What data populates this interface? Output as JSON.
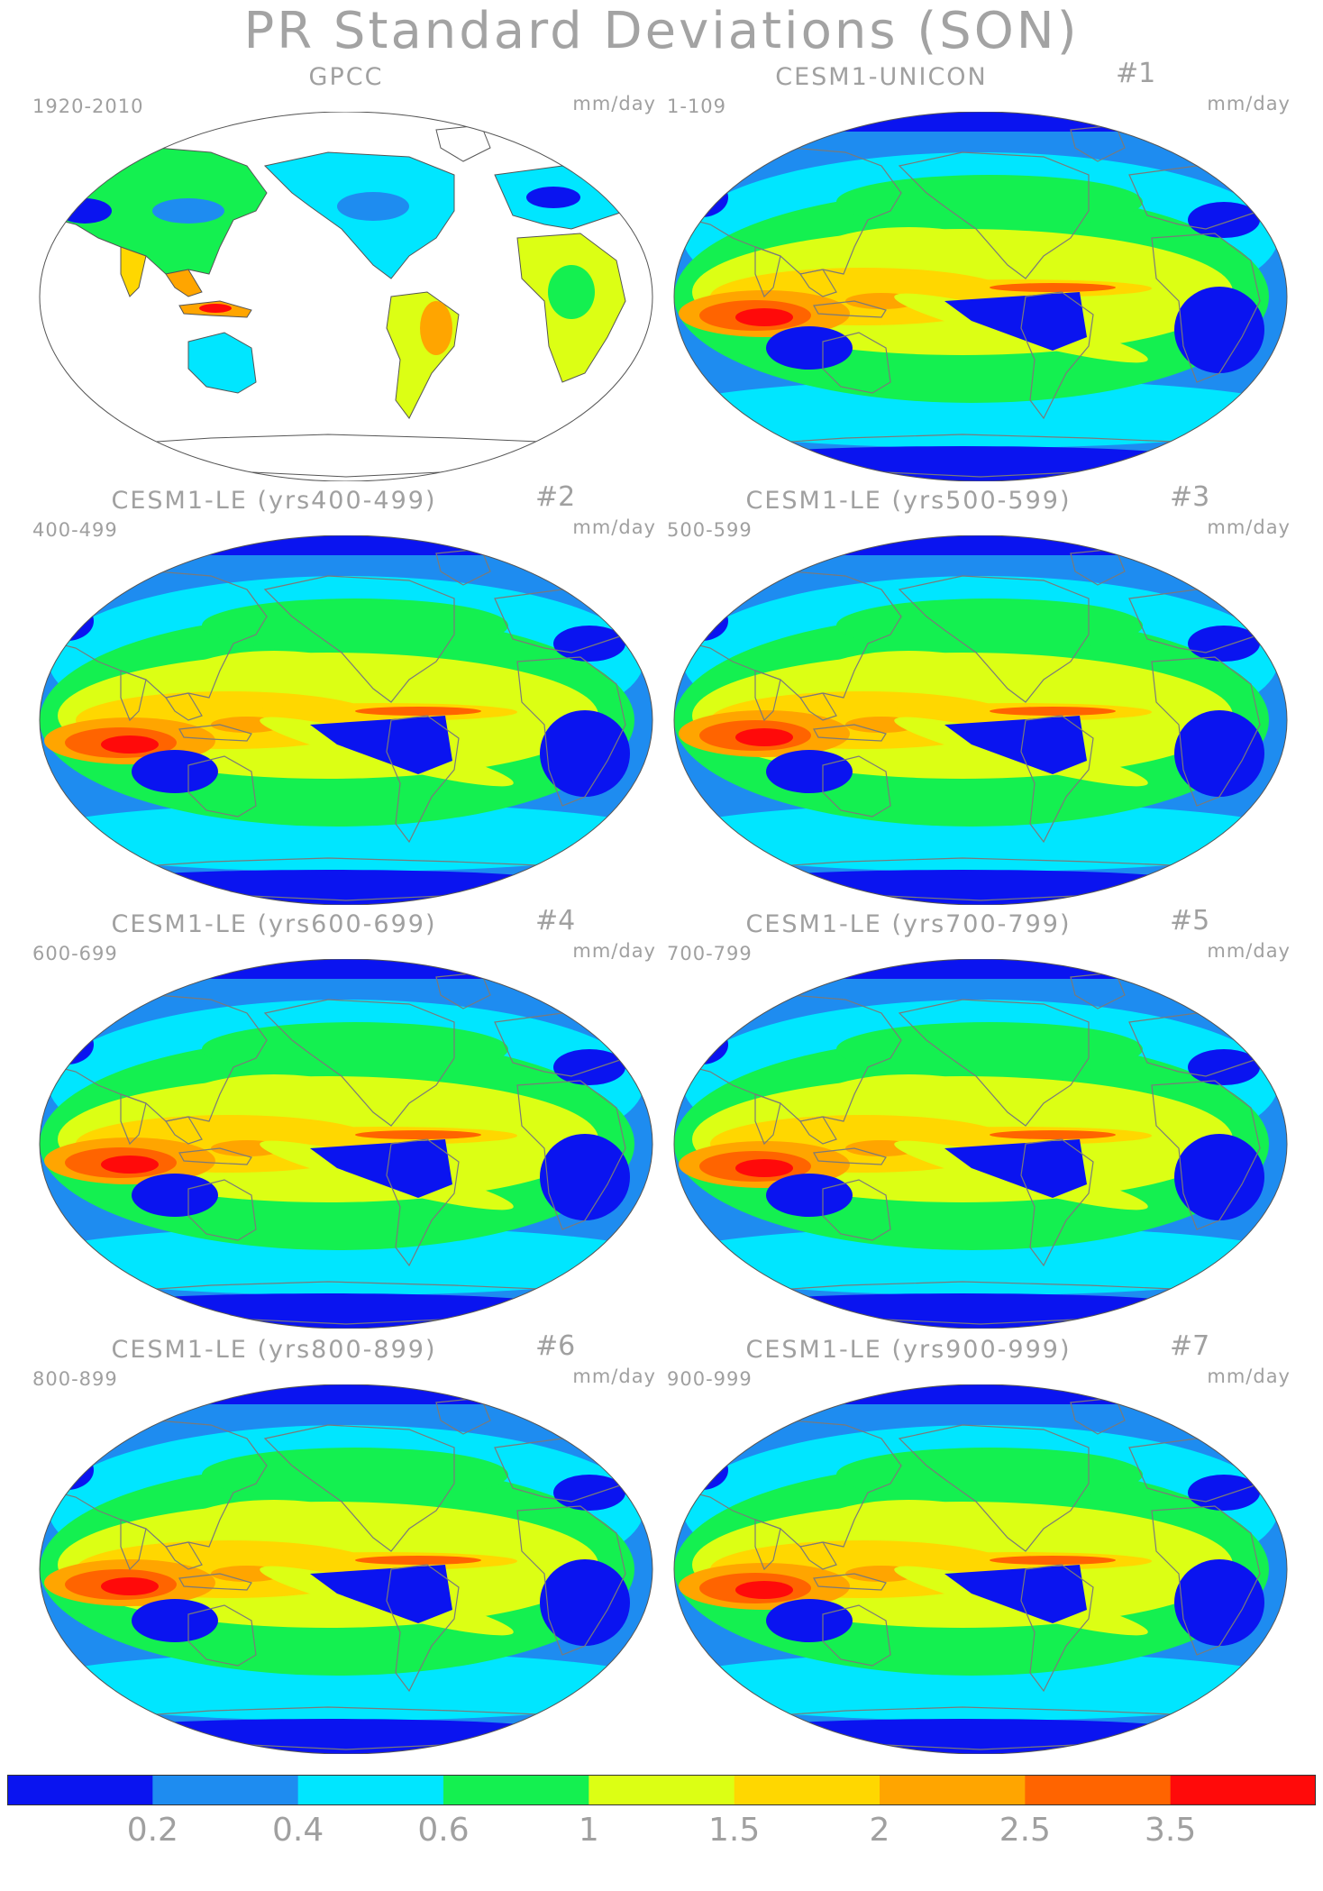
{
  "title": "PR Standard Deviations (SON)",
  "units": "mm/day",
  "panels": [
    {
      "title": "GPCC",
      "number": "",
      "years": "1920-2010",
      "type": "obs"
    },
    {
      "title": "CESM1-UNICON",
      "number": "#1",
      "years": "1-109",
      "type": "model"
    },
    {
      "title": "CESM1-LE (yrs400-499)",
      "number": "#2",
      "years": "400-499",
      "type": "model"
    },
    {
      "title": "CESM1-LE (yrs500-599)",
      "number": "#3",
      "years": "500-599",
      "type": "model"
    },
    {
      "title": "CESM1-LE (yrs600-699)",
      "number": "#4",
      "years": "600-699",
      "type": "model"
    },
    {
      "title": "CESM1-LE (yrs700-799)",
      "number": "#5",
      "years": "700-799",
      "type": "model"
    },
    {
      "title": "CESM1-LE (yrs800-899)",
      "number": "#6",
      "years": "800-899",
      "type": "model"
    },
    {
      "title": "CESM1-LE (yrs900-999)",
      "number": "#7",
      "years": "900-999",
      "type": "model"
    }
  ],
  "colorbar": {
    "colors": [
      "#0a14f0",
      "#1e8cf0",
      "#00e6ff",
      "#14f050",
      "#dcff14",
      "#ffd700",
      "#ffa500",
      "#ff6400",
      "#ff0a0a"
    ],
    "labels": [
      "0.2",
      "0.4",
      "0.6",
      "1",
      "1.5",
      "2",
      "2.5",
      "3.5"
    ]
  }
}
